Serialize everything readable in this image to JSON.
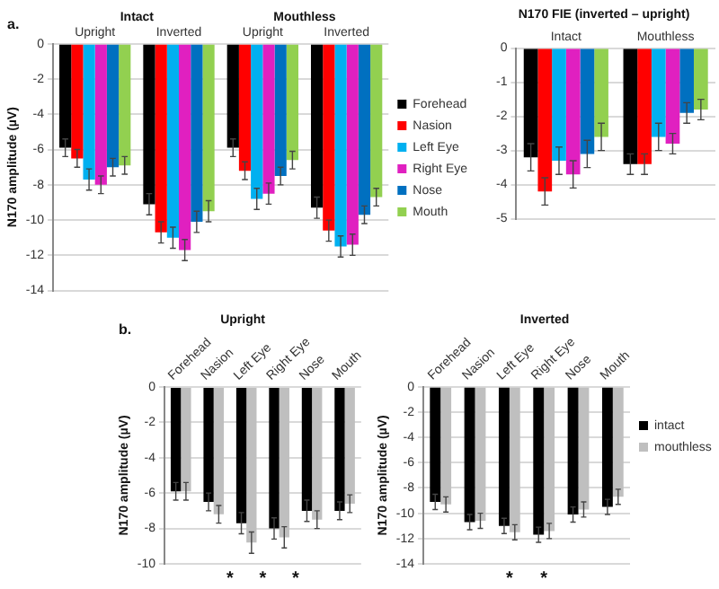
{
  "chart_data": [
    {
      "type": "bar",
      "categories": [
        "Upright",
        "Inverted",
        "Upright",
        "Inverted"
      ],
      "ylabel": "N170 amplitude (µV)",
      "ylim": [
        -14,
        0
      ],
      "yticks": [
        -14,
        -12,
        -10,
        -8,
        -6,
        -4,
        -2,
        0
      ],
      "grid": "y",
      "legend": "right",
      "annotations": [
        "a.",
        "Intact",
        "Mouthless"
      ],
      "series": [
        {
          "name": "Forehead",
          "color": "#000000",
          "values": [
            -5.9,
            -9.1,
            -5.9,
            -9.3
          ],
          "errors": [
            0.5,
            0.6,
            0.5,
            0.6
          ]
        },
        {
          "name": "Nasion",
          "color": "#ff0000",
          "values": [
            -6.5,
            -10.7,
            -7.2,
            -10.6
          ],
          "errors": [
            0.5,
            0.6,
            0.5,
            0.6
          ]
        },
        {
          "name": "Left Eye",
          "color": "#00b0f0",
          "values": [
            -7.7,
            -11.0,
            -8.8,
            -11.5
          ],
          "errors": [
            0.6,
            0.6,
            0.6,
            0.6
          ]
        },
        {
          "name": "Right Eye",
          "color": "#e020c0",
          "values": [
            -8.0,
            -11.7,
            -8.5,
            -11.4
          ],
          "errors": [
            0.5,
            0.6,
            0.6,
            0.6
          ]
        },
        {
          "name": "Nose",
          "color": "#0070c0",
          "values": [
            -7.0,
            -10.1,
            -7.5,
            -9.7
          ],
          "errors": [
            0.5,
            0.6,
            0.5,
            0.5
          ]
        },
        {
          "name": "Mouth",
          "color": "#92d050",
          "values": [
            -6.9,
            -9.5,
            -6.6,
            -8.7
          ],
          "errors": [
            0.5,
            0.6,
            0.5,
            0.5
          ]
        }
      ]
    },
    {
      "type": "bar",
      "title": "N170 FIE (inverted – upright)",
      "categories": [
        "Intact",
        "Mouthless"
      ],
      "ylim": [
        -5,
        0
      ],
      "yticks": [
        -5,
        -4,
        -3,
        -2,
        -1,
        0
      ],
      "grid": "y",
      "series": [
        {
          "color": "#000000",
          "values": [
            -3.2,
            -3.4
          ],
          "errors": [
            0.4,
            0.3
          ]
        },
        {
          "color": "#ff0000",
          "values": [
            -4.2,
            -3.4
          ],
          "errors": [
            0.4,
            0.3
          ]
        },
        {
          "color": "#00b0f0",
          "values": [
            -3.3,
            -2.6
          ],
          "errors": [
            0.4,
            0.4
          ]
        },
        {
          "color": "#e020c0",
          "values": [
            -3.7,
            -2.8
          ],
          "errors": [
            0.4,
            0.3
          ]
        },
        {
          "color": "#0070c0",
          "values": [
            -3.1,
            -1.9
          ],
          "errors": [
            0.4,
            0.3
          ]
        },
        {
          "color": "#92d050",
          "values": [
            -2.6,
            -1.8
          ],
          "errors": [
            0.4,
            0.3
          ]
        }
      ]
    },
    {
      "type": "bar",
      "title": "Upright",
      "categories": [
        "Forehead",
        "Nasion",
        "Left Eye",
        "Right Eye",
        "Nose",
        "Mouth"
      ],
      "ylabel": "N170 amplitude (µV)",
      "ylim": [
        -10,
        0
      ],
      "yticks": [
        -10,
        -8,
        -6,
        -4,
        -2,
        0
      ],
      "grid": "y",
      "annotations": [
        "b.",
        "*",
        "*",
        "*"
      ],
      "series": [
        {
          "color": "#000000",
          "values": [
            -5.9,
            -6.5,
            -7.7,
            -8.0,
            -7.0,
            -7.0
          ],
          "errors": [
            0.5,
            0.5,
            0.6,
            0.6,
            0.6,
            0.5
          ]
        },
        {
          "color": "#bfbfbf",
          "values": [
            -5.9,
            -7.2,
            -8.8,
            -8.5,
            -7.5,
            -6.6
          ],
          "errors": [
            0.5,
            0.5,
            0.6,
            0.6,
            0.5,
            0.5
          ]
        }
      ]
    },
    {
      "type": "bar",
      "title": "Inverted",
      "categories": [
        "Forehead",
        "Nasion",
        "Left Eye",
        "Right Eye",
        "Nose",
        "Mouth"
      ],
      "ylabel": "N170 amplitude (µV)",
      "ylim": [
        -14,
        0
      ],
      "yticks": [
        -14,
        -12,
        -10,
        -8,
        -6,
        -4,
        -2,
        0
      ],
      "grid": "y",
      "legend": "right",
      "annotations": [
        "*",
        "*"
      ],
      "series": [
        {
          "name": "intact",
          "color": "#000000",
          "values": [
            -9.1,
            -10.7,
            -11.0,
            -11.7,
            -10.1,
            -9.5
          ],
          "errors": [
            0.6,
            0.6,
            0.6,
            0.6,
            0.6,
            0.6
          ]
        },
        {
          "name": "mouthless",
          "color": "#bfbfbf",
          "values": [
            -9.3,
            -10.6,
            -11.5,
            -11.4,
            -9.7,
            -8.7
          ],
          "errors": [
            0.6,
            0.6,
            0.6,
            0.6,
            0.6,
            0.6
          ]
        }
      ]
    }
  ]
}
